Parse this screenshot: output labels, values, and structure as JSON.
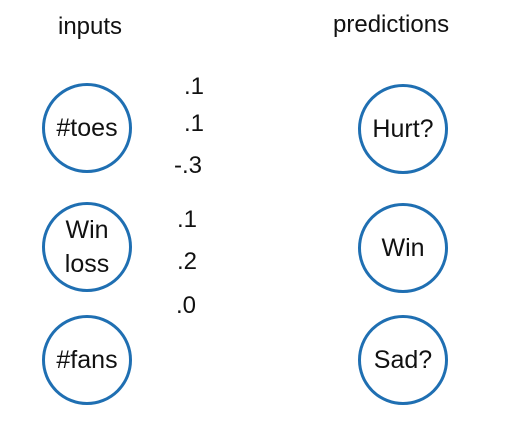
{
  "headings": {
    "inputs": "inputs",
    "predictions": "predictions"
  },
  "inputs": [
    {
      "lines": [
        "#toes"
      ]
    },
    {
      "lines": [
        "Win",
        "loss"
      ]
    },
    {
      "lines": [
        "#fans"
      ]
    }
  ],
  "predictions": [
    {
      "label": "Hurt?"
    },
    {
      "label": "Win"
    },
    {
      "label": "Sad?"
    }
  ],
  "weights": [
    ".1",
    ".1",
    "-.3",
    ".1",
    ".2",
    ".0"
  ],
  "colors": {
    "node_border": "#1f6fb2",
    "text": "#111111",
    "background": "#ffffff"
  }
}
